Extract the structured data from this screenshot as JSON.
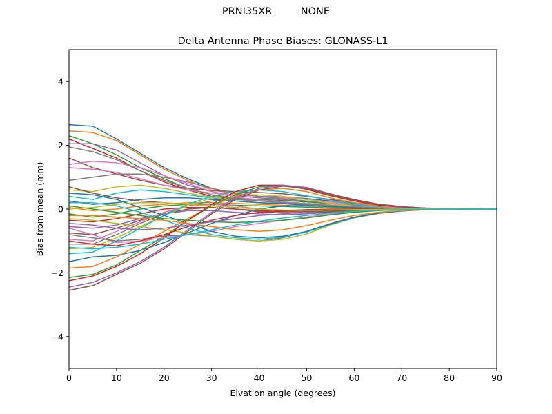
{
  "figure": {
    "suptitle_left": "PRNI35XR",
    "suptitle_right": "NONE"
  },
  "chart_data": {
    "type": "line",
    "title": "Delta Antenna Phase Biases: GLONASS-L1",
    "xlabel": "Elvation angle (degrees)",
    "ylabel": "Bias from mean (mm)",
    "xlim": [
      0,
      90
    ],
    "ylim": [
      -5,
      5
    ],
    "xticks": [
      0,
      10,
      20,
      30,
      40,
      50,
      60,
      70,
      80,
      90
    ],
    "yticks": [
      -4,
      -2,
      0,
      2,
      4
    ],
    "grid": false,
    "legend": "none",
    "colors": [
      "#1f77b4",
      "#ff7f0e",
      "#2ca02c",
      "#d62728",
      "#9467bd",
      "#8c564b",
      "#e377c2",
      "#7f7f7f",
      "#bcbd22",
      "#17becf"
    ],
    "x": [
      0,
      5,
      10,
      15,
      20,
      25,
      30,
      35,
      40,
      45,
      50,
      55,
      60,
      65,
      70,
      75,
      80,
      85,
      90
    ],
    "series": [
      {
        "values": [
          2.65,
          2.6,
          2.2,
          1.75,
          1.3,
          0.95,
          0.65,
          0.5,
          0.4,
          0.38,
          0.33,
          0.25,
          0.17,
          0.1,
          0.05,
          0.03,
          0.02,
          0.01,
          0
        ]
      },
      {
        "values": [
          2.45,
          2.4,
          2.15,
          1.7,
          1.25,
          0.9,
          0.6,
          0.48,
          0.4,
          0.36,
          0.3,
          0.22,
          0.15,
          0.09,
          0.05,
          0.03,
          0.02,
          0.01,
          0
        ]
      },
      {
        "values": [
          2.3,
          2.05,
          1.7,
          1.3,
          0.95,
          0.65,
          0.45,
          0.35,
          0.3,
          0.27,
          0.22,
          0.17,
          0.12,
          0.07,
          0.04,
          0.02,
          0.01,
          0.01,
          0
        ]
      },
      {
        "values": [
          2.2,
          1.9,
          1.6,
          1.2,
          0.85,
          0.6,
          0.4,
          0.3,
          0.25,
          0.22,
          0.18,
          0.13,
          0.09,
          0.05,
          0.03,
          0.02,
          0.01,
          0.0,
          0
        ]
      },
      {
        "values": [
          2.05,
          2.05,
          1.85,
          1.45,
          1.05,
          0.75,
          0.55,
          0.42,
          0.35,
          0.3,
          0.25,
          0.18,
          0.12,
          0.07,
          0.04,
          0.02,
          0.01,
          0.0,
          0
        ]
      },
      {
        "values": [
          1.6,
          1.3,
          1.1,
          0.9,
          0.75,
          0.65,
          0.58,
          0.55,
          0.52,
          0.48,
          0.4,
          0.3,
          0.2,
          0.12,
          0.06,
          0.03,
          0.02,
          0.01,
          0
        ]
      },
      {
        "values": [
          1.3,
          1.25,
          1.15,
          0.95,
          0.75,
          0.6,
          0.5,
          0.45,
          0.4,
          0.35,
          0.3,
          0.22,
          0.15,
          0.09,
          0.05,
          0.02,
          0.01,
          0.0,
          0
        ]
      },
      {
        "values": [
          0.9,
          1.0,
          1.1,
          1.1,
          1.0,
          0.85,
          0.65,
          0.5,
          0.4,
          0.32,
          0.25,
          0.18,
          0.12,
          0.07,
          0.04,
          0.02,
          0.01,
          0.0,
          0
        ]
      },
      {
        "values": [
          0.6,
          0.55,
          0.7,
          0.75,
          0.65,
          0.5,
          0.38,
          0.3,
          0.25,
          0.22,
          0.18,
          0.13,
          0.09,
          0.05,
          0.03,
          0.01,
          0.0,
          0.0,
          0
        ]
      },
      {
        "values": [
          0.4,
          0.3,
          0.5,
          0.6,
          0.55,
          0.45,
          0.35,
          0.25,
          0.2,
          0.18,
          0.15,
          0.1,
          0.07,
          0.04,
          0.02,
          0.01,
          0.0,
          0.0,
          0
        ]
      },
      {
        "values": [
          0.25,
          0.15,
          0.2,
          0.3,
          0.35,
          0.35,
          0.3,
          0.25,
          0.2,
          0.17,
          0.12,
          0.08,
          0.05,
          0.03,
          0.02,
          0.01,
          0.0,
          0.0,
          0
        ]
      },
      {
        "values": [
          0.05,
          -0.05,
          0.0,
          0.1,
          0.15,
          0.2,
          0.2,
          0.18,
          0.15,
          0.12,
          0.1,
          0.07,
          0.04,
          0.02,
          0.01,
          0.0,
          0.0,
          0.0,
          0
        ]
      },
      {
        "values": [
          -0.15,
          -0.25,
          -0.15,
          0.0,
          0.1,
          0.15,
          0.15,
          0.12,
          0.1,
          0.08,
          0.06,
          0.04,
          0.03,
          0.02,
          0.01,
          0.0,
          0.0,
          0.0,
          0
        ]
      },
      {
        "values": [
          -0.35,
          -0.4,
          -0.3,
          -0.15,
          0.0,
          0.05,
          0.05,
          0.0,
          -0.05,
          -0.08,
          -0.08,
          -0.06,
          -0.04,
          -0.02,
          -0.01,
          0.0,
          0.0,
          0.0,
          0
        ]
      },
      {
        "values": [
          -0.55,
          -0.6,
          -0.5,
          -0.3,
          -0.15,
          -0.05,
          -0.05,
          -0.1,
          -0.15,
          -0.18,
          -0.15,
          -0.1,
          -0.06,
          -0.03,
          -0.02,
          -0.01,
          0.0,
          0.0,
          0
        ]
      },
      {
        "values": [
          -0.75,
          -0.8,
          -0.6,
          -0.35,
          -0.15,
          0.0,
          0.05,
          0.0,
          -0.08,
          -0.12,
          -0.12,
          -0.08,
          -0.05,
          -0.03,
          -0.01,
          0.0,
          0.0,
          0.0,
          0
        ]
      },
      {
        "values": [
          -0.95,
          -1.0,
          -0.7,
          -0.4,
          -0.1,
          0.1,
          0.15,
          0.1,
          0.0,
          -0.05,
          -0.08,
          -0.06,
          -0.04,
          -0.02,
          -0.01,
          0.0,
          0.0,
          0.0,
          0
        ]
      },
      {
        "values": [
          -1.1,
          -1.1,
          -0.8,
          -0.45,
          -0.15,
          0.1,
          0.25,
          0.3,
          0.28,
          0.22,
          0.15,
          0.08,
          0.04,
          0.02,
          0.01,
          0.0,
          0.0,
          0.0,
          0
        ]
      },
      {
        "values": [
          -1.25,
          -1.2,
          -0.9,
          -0.55,
          -0.2,
          0.1,
          0.35,
          0.45,
          0.45,
          0.4,
          0.3,
          0.18,
          0.1,
          0.05,
          0.02,
          0.01,
          0.0,
          0.0,
          0
        ]
      },
      {
        "values": [
          -1.4,
          -1.35,
          -1.0,
          -0.6,
          -0.2,
          0.15,
          0.4,
          0.55,
          0.6,
          0.55,
          0.42,
          0.27,
          0.15,
          0.08,
          0.04,
          0.02,
          0.01,
          0.0,
          0
        ]
      },
      {
        "values": [
          -1.65,
          -1.5,
          -1.45,
          -1.3,
          -1.05,
          -0.75,
          -0.45,
          -0.2,
          0.0,
          0.1,
          0.1,
          0.08,
          0.05,
          0.03,
          0.01,
          0.0,
          0.0,
          0.0,
          0
        ]
      },
      {
        "values": [
          -1.85,
          -1.8,
          -1.5,
          -1.1,
          -0.7,
          -0.3,
          0.1,
          0.4,
          0.6,
          0.65,
          0.55,
          0.35,
          0.2,
          0.1,
          0.05,
          0.02,
          0.01,
          0.0,
          0
        ]
      },
      {
        "values": [
          -2.15,
          -2.05,
          -1.75,
          -1.3,
          -0.85,
          -0.35,
          0.1,
          0.45,
          0.7,
          0.75,
          0.65,
          0.45,
          0.27,
          0.15,
          0.07,
          0.03,
          0.01,
          0.0,
          0
        ]
      },
      {
        "values": [
          -2.25,
          -2.1,
          -1.8,
          -1.4,
          -0.9,
          -0.35,
          0.15,
          0.55,
          0.75,
          0.75,
          0.62,
          0.42,
          0.25,
          0.13,
          0.06,
          0.03,
          0.01,
          0.0,
          0
        ]
      },
      {
        "values": [
          -2.45,
          -2.3,
          -2.0,
          -1.65,
          -1.2,
          -0.65,
          -0.1,
          0.35,
          0.65,
          0.75,
          0.68,
          0.48,
          0.3,
          0.16,
          0.08,
          0.03,
          0.01,
          0.0,
          0
        ]
      },
      {
        "values": [
          -2.55,
          -2.4,
          -2.05,
          -1.7,
          -1.25,
          -0.7,
          -0.15,
          0.3,
          0.6,
          0.72,
          0.65,
          0.47,
          0.29,
          0.15,
          0.07,
          0.03,
          0.01,
          0.0,
          0
        ]
      },
      {
        "values": [
          -0.6,
          -0.8,
          -1.05,
          -1.0,
          -0.9,
          -0.8,
          -0.7,
          -0.55,
          -0.45,
          -0.35,
          -0.25,
          -0.15,
          -0.08,
          -0.04,
          -0.02,
          -0.01,
          0.0,
          0.0,
          0
        ]
      },
      {
        "values": [
          -0.8,
          -0.9,
          -1.0,
          -0.95,
          -0.85,
          -0.8,
          -0.85,
          -0.95,
          -1.0,
          -0.9,
          -0.7,
          -0.45,
          -0.25,
          -0.12,
          -0.05,
          -0.02,
          -0.01,
          0.0,
          0
        ]
      },
      {
        "values": [
          -0.3,
          -0.35,
          -0.45,
          -0.55,
          -0.65,
          -0.75,
          -0.85,
          -0.95,
          -1.0,
          -0.95,
          -0.78,
          -0.5,
          -0.28,
          -0.14,
          -0.06,
          -0.02,
          -0.01,
          0.0,
          0
        ]
      },
      {
        "values": [
          0.2,
          0.2,
          0.1,
          -0.1,
          -0.35,
          -0.6,
          -0.8,
          -0.9,
          -0.95,
          -0.88,
          -0.72,
          -0.48,
          -0.27,
          -0.13,
          -0.06,
          -0.02,
          -0.01,
          0.0,
          0
        ]
      },
      {
        "values": [
          0.5,
          0.45,
          0.3,
          0.05,
          -0.2,
          -0.45,
          -0.7,
          -0.85,
          -0.9,
          -0.85,
          -0.7,
          -0.47,
          -0.26,
          -0.13,
          -0.06,
          -0.02,
          -0.01,
          0.0,
          0
        ]
      },
      {
        "values": [
          -0.2,
          -0.2,
          -0.25,
          -0.3,
          -0.35,
          -0.45,
          -0.55,
          -0.65,
          -0.7,
          -0.65,
          -0.52,
          -0.35,
          -0.2,
          -0.1,
          -0.05,
          -0.02,
          -0.01,
          0.0,
          0
        ]
      },
      {
        "values": [
          0.1,
          0.0,
          -0.1,
          -0.2,
          -0.3,
          -0.35,
          -0.4,
          -0.42,
          -0.4,
          -0.35,
          -0.28,
          -0.18,
          -0.1,
          -0.05,
          -0.02,
          -0.01,
          0.0,
          0.0,
          0
        ]
      },
      {
        "values": [
          -1.0,
          -1.1,
          -1.15,
          -1.0,
          -0.8,
          -0.55,
          -0.35,
          -0.2,
          -0.1,
          -0.05,
          -0.02,
          0.0,
          0.0,
          0.0,
          0.0,
          0.0,
          0.0,
          0.0,
          0
        ]
      },
      {
        "values": [
          -0.45,
          -0.5,
          -0.6,
          -0.65,
          -0.6,
          -0.5,
          -0.4,
          -0.3,
          -0.2,
          -0.15,
          -0.1,
          -0.06,
          -0.03,
          -0.02,
          -0.01,
          0.0,
          0.0,
          0.0,
          0
        ]
      },
      {
        "values": [
          0.7,
          0.5,
          0.35,
          0.25,
          0.2,
          0.15,
          0.1,
          0.05,
          0.0,
          -0.05,
          -0.07,
          -0.06,
          -0.04,
          -0.02,
          -0.01,
          0.0,
          0.0,
          0.0,
          0
        ]
      },
      {
        "values": [
          1.4,
          1.5,
          1.45,
          1.3,
          1.05,
          0.8,
          0.55,
          0.38,
          0.28,
          0.22,
          0.17,
          0.12,
          0.08,
          0.05,
          0.03,
          0.01,
          0.0,
          0.0,
          0
        ]
      },
      {
        "values": [
          1.95,
          1.8,
          1.55,
          1.2,
          0.9,
          0.65,
          0.45,
          0.32,
          0.25,
          0.2,
          0.16,
          0.11,
          0.07,
          0.04,
          0.02,
          0.01,
          0.0,
          0.0,
          0
        ]
      },
      {
        "values": [
          0.0,
          0.05,
          0.15,
          0.2,
          0.2,
          0.15,
          0.1,
          0.05,
          0.0,
          -0.03,
          -0.04,
          -0.03,
          -0.02,
          -0.01,
          0.0,
          0.0,
          0.0,
          0.0,
          0
        ]
      },
      {
        "values": [
          -1.2,
          -1.25,
          -1.2,
          -1.1,
          -0.95,
          -0.8,
          -0.65,
          -0.5,
          -0.38,
          -0.28,
          -0.2,
          -0.12,
          -0.07,
          -0.04,
          -0.02,
          -0.01,
          0.0,
          0.0,
          0
        ]
      }
    ]
  }
}
